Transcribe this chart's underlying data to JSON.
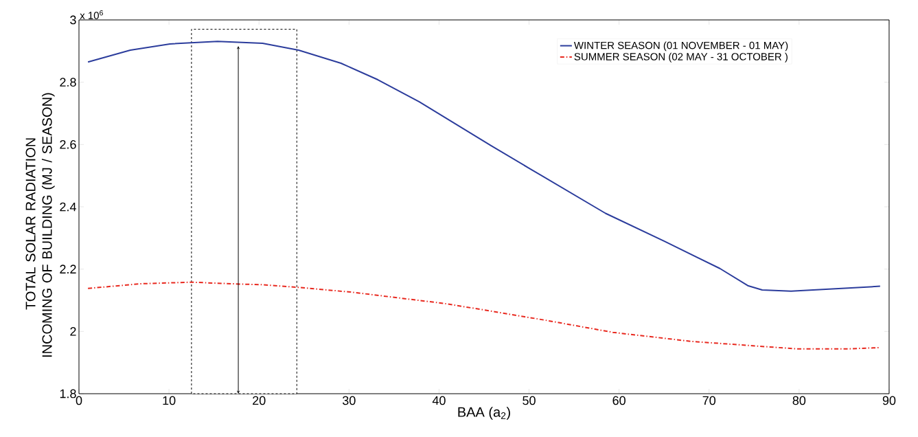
{
  "chart_data": {
    "type": "line",
    "xlabel": "BAA (a$_{2}$)",
    "ylabel": "TOTAL SOLAR RADIATION INCOMING OF BUILDING (MJ / SEASON)",
    "annotations": [
      "x 10$^{6}$"
    ],
    "xlim": [
      0,
      90
    ],
    "ylim": [
      1.8,
      3
    ],
    "xticks": [
      0,
      10,
      20,
      30,
      40,
      50,
      60,
      70,
      80,
      90
    ],
    "yticks": [
      1.8,
      2,
      2.2,
      2.4,
      2.6,
      2.8,
      3
    ],
    "legend": "top right",
    "grid": false,
    "bands": [
      {
        "axis": "x",
        "from": 12.5,
        "to": 24.2,
        "color": "#000000"
      }
    ],
    "ref_lines": [
      {
        "axis": "x",
        "value": 17.7,
        "color": "#000000"
      }
    ],
    "series": [
      {
        "name": "WINTER SEASON (01 NOVEMBER - 01 MAY)",
        "color": "#2b3c9c",
        "line_style": "solid",
        "x": [
          1,
          5.7,
          10.1,
          15.4,
          20.4,
          24.4,
          29.1,
          33.2,
          37.8,
          45.8,
          50,
          58.5,
          65,
          71.2,
          74.3,
          75.9,
          79.1,
          89
        ],
        "values": [
          2.865,
          2.903,
          2.923,
          2.931,
          2.925,
          2.903,
          2.861,
          2.808,
          2.737,
          2.596,
          2.524,
          2.379,
          2.29,
          2.202,
          2.147,
          2.133,
          2.129,
          2.145
        ]
      },
      {
        "name": "SUMMER SEASON (02 MAY - 31 OCTOBER )",
        "color": "#e8281e",
        "line_style": "dashdot",
        "x": [
          1,
          6.9,
          12.5,
          17.8,
          20.4,
          24.5,
          30.3,
          40.5,
          45.2,
          52,
          59.3,
          68,
          79.7,
          85.5,
          89
        ],
        "values": [
          2.138,
          2.153,
          2.158,
          2.152,
          2.15,
          2.141,
          2.126,
          2.09,
          2.068,
          2.035,
          1.997,
          1.968,
          1.944,
          1.944,
          1.948
        ]
      }
    ]
  }
}
